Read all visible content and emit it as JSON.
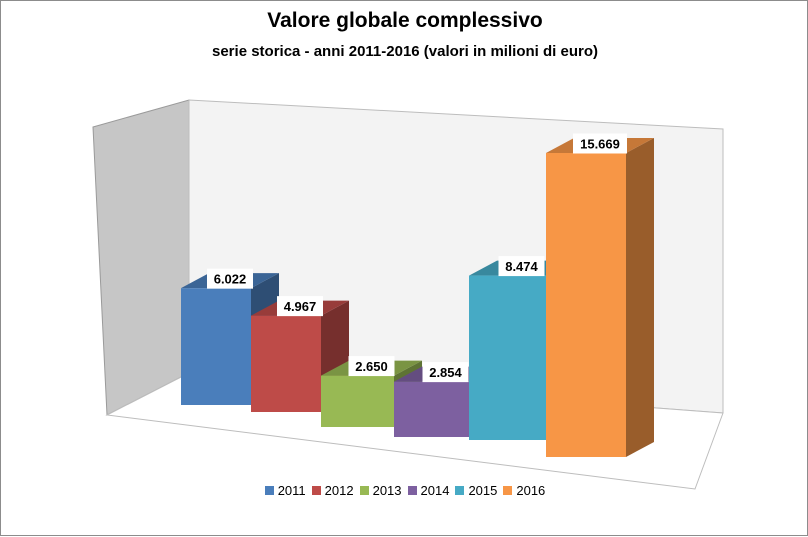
{
  "chart_data": {
    "type": "bar",
    "title": "Valore globale complessivo",
    "subtitle": "serie storica - anni 2011-2016 (valori in milioni di euro)",
    "categories": [
      "2011",
      "2012",
      "2013",
      "2014",
      "2015",
      "2016"
    ],
    "values": [
      6022,
      4967,
      2650,
      2854,
      8474,
      15669
    ],
    "value_labels": [
      "6.022",
      "4.967",
      "2.650",
      "2.854",
      "8.474",
      "15.669"
    ],
    "colors": [
      "#4a7ebb",
      "#be4b48",
      "#98b954",
      "#7d60a0",
      "#46aac5",
      "#f79646"
    ],
    "xlabel": "",
    "ylabel": "",
    "ylim": [
      0,
      16000
    ],
    "grid": false,
    "legend": "bottom",
    "three_d": true
  }
}
